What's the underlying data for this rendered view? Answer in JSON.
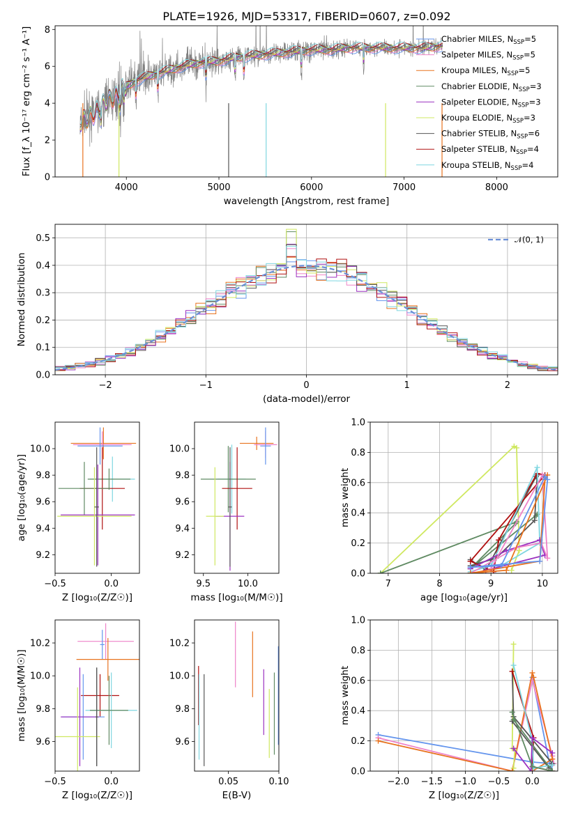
{
  "title": "PLATE=1926, MJD=53317, FIBERID=0607, z=0.092",
  "chart_data": [
    {
      "type": "line",
      "panel": "spectrum",
      "xlabel": "wavelength [Angstrom, rest frame]",
      "ylabel": "Flux [f_λ 10⁻¹⁷ erg cm⁻² s⁻¹ A⁻¹]",
      "xlim": [
        3230,
        8660
      ],
      "ylim": [
        0,
        8.2
      ],
      "xticks": [
        "4000",
        "5000",
        "6000",
        "7000",
        "8000"
      ],
      "yticks": [
        "0",
        "2",
        "4",
        "6",
        "8"
      ],
      "legend_position": "right",
      "series": [
        {
          "name": "Chabrier MILES, N_SSP=5",
          "color": "#6495ed"
        },
        {
          "name": "Salpeter MILES, N_SSP=5",
          "color": "#ee82c8"
        },
        {
          "name": "Kroupa MILES, N_SSP=5",
          "color": "#e8731f"
        },
        {
          "name": "Chabrier ELODIE, N_SSP=3",
          "color": "#5f8a62"
        },
        {
          "name": "Salpeter ELODIE, N_SSP=3",
          "color": "#9b30c0"
        },
        {
          "name": "Kroupa ELODIE, N_SSP=3",
          "color": "#cfe860"
        },
        {
          "name": "Chabrier STELIB, N_SSP=6",
          "color": "#555555"
        },
        {
          "name": "Salpeter STELIB, N_SSP=4",
          "color": "#b01010"
        },
        {
          "name": "Kroupa STELIB, N_SSP=4",
          "color": "#7fd6e0"
        }
      ],
      "data_color": "#808080",
      "continuum_knots": {
        "x": [
          3500,
          3600,
          3700,
          3800,
          3900,
          4000,
          4100,
          4200,
          4400,
          4600,
          4800,
          5000,
          5200,
          5400,
          5600,
          5800,
          6000,
          6200,
          6400,
          6600,
          6800,
          7000,
          7200,
          7400
        ],
        "y": [
          2.9,
          3.3,
          3.6,
          4.2,
          4.4,
          4.9,
          5.2,
          5.4,
          5.7,
          6.0,
          6.2,
          6.3,
          6.5,
          6.6,
          6.7,
          6.8,
          6.9,
          6.9,
          7.0,
          7.0,
          7.0,
          7.0,
          7.0,
          7.1
        ]
      }
    },
    {
      "type": "histogram",
      "panel": "residuals",
      "xlabel": "(data-model)/error",
      "ylabel": "Normed distribution",
      "xlim": [
        -2.5,
        2.5
      ],
      "ylim": [
        0,
        0.55
      ],
      "xticks": [
        "−2",
        "−1",
        "0",
        "1",
        "2"
      ],
      "yticks": [
        "0.0",
        "0.1",
        "0.2",
        "0.3",
        "0.4",
        "0.5"
      ],
      "grid": true,
      "legend": [
        {
          "name": "𝒩(0, 1)",
          "style": "dashed",
          "color": "#6a8fd6"
        }
      ],
      "bin_width": 0.1
    },
    {
      "type": "errorbar",
      "panel": "age-vs-Z",
      "xlabel": "Z [log₁₀(Z/Z☉)]",
      "ylabel": "age  [log₁₀(age/yr)]",
      "xlim": [
        -0.5,
        0.25
      ],
      "ylim": [
        9.06,
        10.2
      ],
      "xticks": [
        "−0.5",
        "0.0"
      ],
      "yticks": [
        "9.2",
        "9.4",
        "9.6",
        "9.8",
        "10.0"
      ],
      "points": [
        {
          "x": -0.07,
          "y": 10.04,
          "xerr": 0.29,
          "yerr": 0.12,
          "color": "#e8731f"
        },
        {
          "x": -0.08,
          "y": 10.03,
          "xerr": 0.26,
          "yerr": 0.1,
          "color": "#ee82c8"
        },
        {
          "x": -0.1,
          "y": 10.02,
          "xerr": 0.2,
          "yerr": 0.14,
          "color": "#6495ed"
        },
        {
          "x": 0.01,
          "y": 9.77,
          "xerr": 0.2,
          "yerr": 0.17,
          "color": "#7fd6e0"
        },
        {
          "x": -0.02,
          "y": 9.77,
          "xerr": 0.19,
          "yerr": 0.08,
          "color": "#5f8a62"
        },
        {
          "x": -0.08,
          "y": 9.7,
          "xerr": 0.2,
          "yerr": 0.31,
          "color": "#b01010"
        },
        {
          "x": -0.24,
          "y": 9.7,
          "xerr": 0.23,
          "yerr": 0.2,
          "color": "#5f8a62"
        },
        {
          "x": -0.12,
          "y": 9.5,
          "xerr": 0.33,
          "yerr": 0.38,
          "color": "#9b30c0"
        },
        {
          "x": -0.15,
          "y": 9.49,
          "xerr": 0.33,
          "yerr": 0.37,
          "color": "#cfe860"
        },
        {
          "x": -0.13,
          "y": 9.56,
          "xerr": 0.02,
          "yerr": 0.45,
          "color": "#555555"
        }
      ]
    },
    {
      "type": "errorbar",
      "panel": "age-vs-mass",
      "xlabel": "mass [log₁₀(M/M☉)]",
      "ylabel": "",
      "xlim": [
        9.4,
        10.35
      ],
      "ylim": [
        9.06,
        10.2
      ],
      "xticks": [
        "9.5",
        "10.0"
      ],
      "yticks": [
        "9.2",
        "9.4",
        "9.6",
        "9.8",
        "10.0"
      ],
      "points": [
        {
          "x": 10.1,
          "y": 10.04,
          "xerr": 0.19,
          "yerr": 0.05,
          "color": "#e8731f"
        },
        {
          "x": 10.2,
          "y": 10.03,
          "xerr": 0.13,
          "yerr": 0.1,
          "color": "#ee82c8"
        },
        {
          "x": 10.2,
          "y": 10.02,
          "xerr": 0.06,
          "yerr": 0.14,
          "color": "#6495ed"
        },
        {
          "x": 9.82,
          "y": 9.77,
          "xerr": 0.16,
          "yerr": 0.26,
          "color": "#7fd6e0"
        },
        {
          "x": 9.78,
          "y": 9.77,
          "xerr": 0.31,
          "yerr": 0.25,
          "color": "#5f8a62"
        },
        {
          "x": 9.88,
          "y": 9.7,
          "xerr": 0.17,
          "yerr": 0.31,
          "color": "#b01010"
        },
        {
          "x": 9.8,
          "y": 9.49,
          "xerr": 0.16,
          "yerr": 0.41,
          "color": "#9b30c0"
        },
        {
          "x": 9.63,
          "y": 9.49,
          "xerr": 0.1,
          "yerr": 0.37,
          "color": "#cfe860"
        },
        {
          "x": 9.8,
          "y": 9.56,
          "xerr": 0.02,
          "yerr": 0.45,
          "color": "#555555"
        }
      ]
    },
    {
      "type": "line",
      "panel": "mass-weight-vs-age",
      "xlabel": "age  [log₁₀(age/yr)]",
      "ylabel": "mass weight",
      "xlim": [
        6.65,
        10.3
      ],
      "ylim": [
        0,
        1.0
      ],
      "xticks": [
        "7",
        "8",
        "9",
        "10"
      ],
      "yticks": [
        "0.0",
        "0.2",
        "0.4",
        "0.6",
        "0.8",
        "1.0"
      ],
      "grid": true,
      "series": [
        {
          "color": "#cfe860",
          "x": [
            6.85,
            9.45,
            9.5,
            9.55,
            9.4
          ],
          "y": [
            0.0,
            0.84,
            0.83,
            0.15,
            0.02
          ]
        },
        {
          "color": "#5f8a62",
          "x": [
            6.85,
            9.5,
            9.48,
            8.6,
            9.9,
            9.88
          ],
          "y": [
            0.0,
            0.34,
            0.33,
            0.03,
            0.39,
            0.38
          ]
        },
        {
          "color": "#555555",
          "x": [
            8.6,
            9.1,
            9.85,
            9.9,
            9.88,
            8.9,
            8.6
          ],
          "y": [
            0.05,
            0.1,
            0.35,
            0.65,
            0.64,
            0.02,
            0.09
          ]
        },
        {
          "color": "#b01010",
          "x": [
            8.6,
            9.05,
            9.15,
            9.9,
            10.05,
            8.6
          ],
          "y": [
            0.08,
            0.01,
            0.22,
            0.66,
            0.65,
            0.08
          ]
        },
        {
          "color": "#7fd6e0",
          "x": [
            8.6,
            9.0,
            9.9,
            9.95,
            9.2
          ],
          "y": [
            0.01,
            0.05,
            0.7,
            0.2,
            0.05
          ]
        },
        {
          "color": "#9b30c0",
          "x": [
            8.6,
            9.3,
            9.95,
            10.05,
            8.9
          ],
          "y": [
            0.03,
            0.15,
            0.22,
            0.12,
            0.02
          ]
        },
        {
          "color": "#ee82c8",
          "x": [
            8.6,
            9.5,
            9.98,
            10.1,
            10.0,
            9.0
          ],
          "y": [
            0.0,
            0.17,
            0.2,
            0.1,
            0.65,
            0.03
          ]
        },
        {
          "color": "#e8731f",
          "x": [
            8.6,
            9.95,
            10.05,
            10.1,
            9.3,
            8.6
          ],
          "y": [
            0.0,
            0.08,
            0.62,
            0.65,
            0.02,
            0.0
          ]
        },
        {
          "color": "#6495ed",
          "x": [
            8.6,
            9.95,
            10.1,
            10.05,
            9.2,
            8.6
          ],
          "y": [
            0.04,
            0.08,
            0.62,
            0.64,
            0.05,
            0.04
          ]
        }
      ]
    },
    {
      "type": "errorbar",
      "panel": "mass-vs-Z",
      "xlabel": "Z [log₁₀(Z/Z☉)]",
      "ylabel": "mass [log₁₀(M/M☉)]",
      "xlim": [
        -0.5,
        0.25
      ],
      "ylim": [
        9.42,
        10.34
      ],
      "xticks": [
        "−0.5",
        "0.0"
      ],
      "yticks": [
        "9.6",
        "9.8",
        "10.0",
        "10.2"
      ],
      "points": [
        {
          "x": -0.05,
          "y": 10.21,
          "xerr": 0.25,
          "yerr": 0.11,
          "color": "#ee82c8"
        },
        {
          "x": -0.08,
          "y": 10.19,
          "xerr": 0.02,
          "yerr": 0.09,
          "color": "#6495ed"
        },
        {
          "x": -0.03,
          "y": 10.1,
          "xerr": 0.28,
          "yerr": 0.13,
          "color": "#e8731f"
        },
        {
          "x": -0.1,
          "y": 9.88,
          "xerr": 0.17,
          "yerr": 0.13,
          "color": "#b01010"
        },
        {
          "x": 0.0,
          "y": 9.79,
          "xerr": 0.23,
          "yerr": 0.23,
          "color": "#7fd6e0"
        },
        {
          "x": -0.02,
          "y": 9.79,
          "xerr": 0.17,
          "yerr": 0.21,
          "color": "#5f8a62"
        },
        {
          "x": -0.13,
          "y": 9.75,
          "xerr": 0.01,
          "yerr": 0.3,
          "color": "#555555"
        },
        {
          "x": -0.25,
          "y": 9.75,
          "xerr": 0.19,
          "yerr": 0.26,
          "color": "#6495ed"
        },
        {
          "x": -0.28,
          "y": 9.75,
          "xerr": 0.17,
          "yerr": 0.3,
          "color": "#9b30c0"
        },
        {
          "x": -0.3,
          "y": 9.63,
          "xerr": 0.2,
          "yerr": 0.3,
          "color": "#cfe860"
        },
        {
          "x": -0.13,
          "y": 9.75,
          "xerr": 0.01,
          "yerr": 0.3,
          "color": "#555555"
        }
      ]
    },
    {
      "type": "errorbar",
      "panel": "mass-vs-EBV",
      "xlabel": "E(B-V)",
      "ylabel": "",
      "xlim": [
        0.0165,
        0.1
      ],
      "ylim": [
        9.42,
        10.34
      ],
      "xticks": [
        "0.05",
        "0.10"
      ],
      "yticks": [
        "9.6",
        "9.8",
        "10.0",
        "10.2"
      ],
      "points": [
        {
          "x": 0.057,
          "y": 10.13,
          "yerr": 0.2,
          "color": "#ee82c8"
        },
        {
          "x": 0.074,
          "y": 10.07,
          "yerr": 0.2,
          "color": "#e8731f"
        },
        {
          "x": 0.0205,
          "y": 9.88,
          "yerr": 0.18,
          "color": "#b01010"
        },
        {
          "x": 0.021,
          "y": 9.75,
          "yerr": 0.26,
          "color": "#7fd6e0"
        },
        {
          "x": 0.026,
          "y": 9.73,
          "yerr": 0.28,
          "color": "#555555"
        },
        {
          "x": 0.085,
          "y": 9.84,
          "yerr": 0.2,
          "color": "#9b30c0"
        },
        {
          "x": 0.0905,
          "y": 9.71,
          "yerr": 0.21,
          "color": "#cfe860"
        },
        {
          "x": 0.0955,
          "y": 9.77,
          "yerr": 0.25,
          "color": "#5f8a62"
        },
        {
          "x": 0.0995,
          "y": 9.88,
          "yerr": 0.3,
          "color": "#6495ed"
        }
      ]
    },
    {
      "type": "line",
      "panel": "mass-weight-vs-Z",
      "xlabel": "Z [log₁₀(Z/Z☉)]",
      "ylabel": "mass weight",
      "xlim": [
        -2.42,
        0.38
      ],
      "ylim": [
        0,
        1.0
      ],
      "xticks": [
        "−2.0",
        "−1.5",
        "−1.0",
        "−0.5",
        "0.0"
      ],
      "yticks": [
        "0.0",
        "0.2",
        "0.4",
        "0.6",
        "0.8",
        "1.0"
      ],
      "grid": true,
      "series": [
        {
          "color": "#6495ed",
          "x": [
            -2.3,
            0.0,
            0.3,
            0.28,
            0.0
          ],
          "y": [
            0.24,
            0.06,
            0.05,
            0.0,
            0.62
          ]
        },
        {
          "color": "#ee82c8",
          "x": [
            -2.3,
            -0.3,
            0.0,
            0.3,
            0.32
          ],
          "y": [
            0.22,
            0.0,
            0.6,
            0.1,
            0.05
          ]
        },
        {
          "color": "#e8731f",
          "x": [
            -2.3,
            -0.3,
            0.0,
            0.02,
            0.3,
            0.0
          ],
          "y": [
            0.2,
            0.0,
            0.65,
            0.62,
            0.08,
            0.0
          ]
        },
        {
          "color": "#cfe860",
          "x": [
            -0.28,
            -0.3,
            -0.26,
            -0.28
          ],
          "y": [
            0.84,
            0.15,
            0.14,
            0.02
          ]
        },
        {
          "color": "#555555",
          "x": [
            -0.3,
            -0.28,
            0.3,
            0.25,
            -0.3
          ],
          "y": [
            0.66,
            0.36,
            0.05,
            0.02,
            0.33
          ]
        },
        {
          "color": "#b01010",
          "x": [
            -0.3,
            0.02,
            0.0,
            0.3
          ],
          "y": [
            0.66,
            0.22,
            0.03,
            0.0
          ]
        },
        {
          "color": "#7fd6e0",
          "x": [
            -0.28,
            0.0,
            0.02,
            0.3
          ],
          "y": [
            0.7,
            0.2,
            0.02,
            0.04
          ]
        },
        {
          "color": "#9b30c0",
          "x": [
            -0.28,
            -0.02,
            0.0,
            0.3
          ],
          "y": [
            0.15,
            0.0,
            0.22,
            0.12
          ]
        },
        {
          "color": "#5f8a62",
          "x": [
            -0.3,
            0.0,
            0.3,
            -0.28
          ],
          "y": [
            0.39,
            0.03,
            0.0,
            0.34
          ]
        }
      ]
    }
  ]
}
